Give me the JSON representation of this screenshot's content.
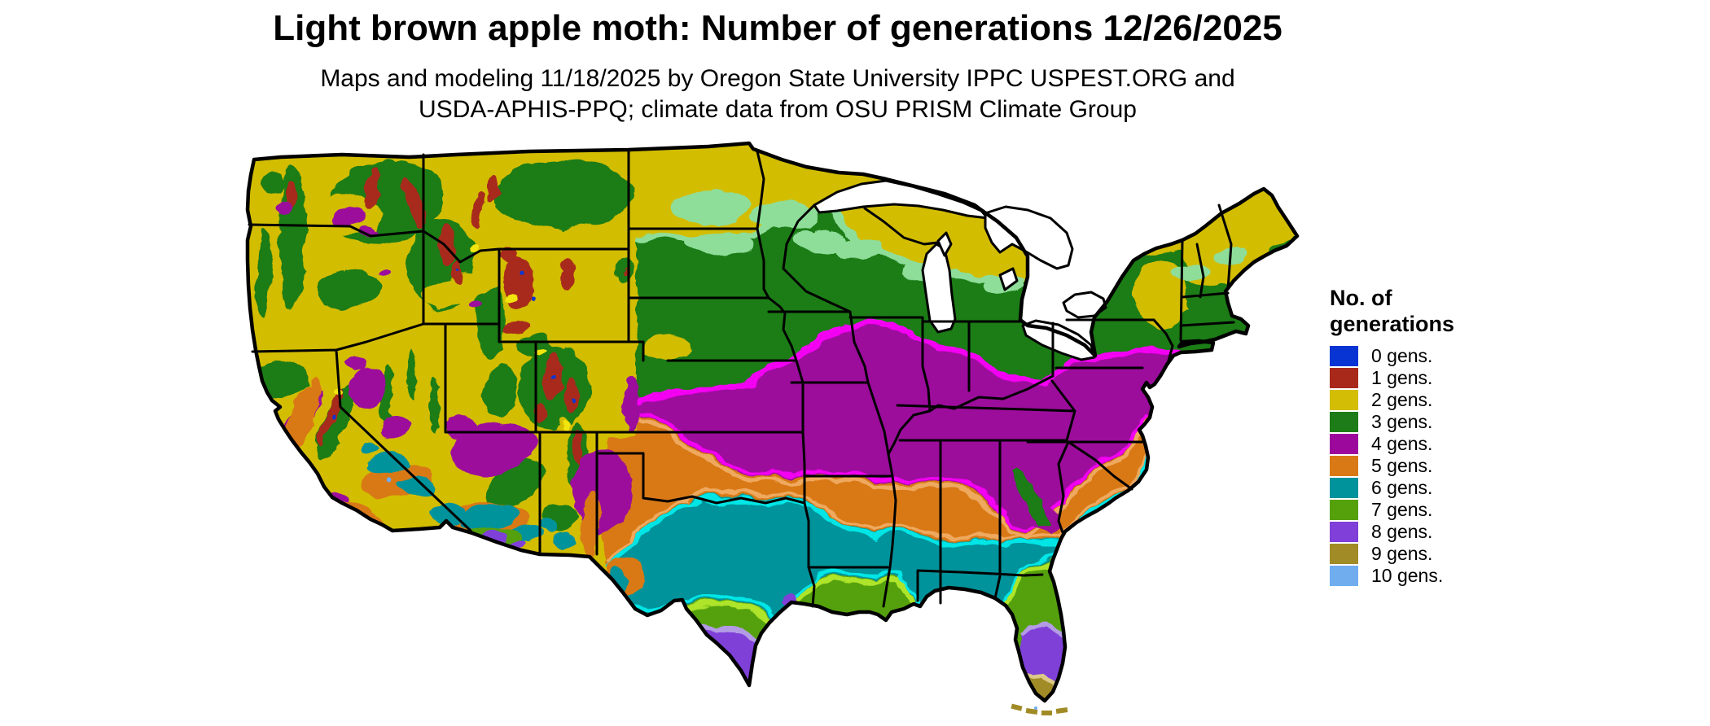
{
  "title": "Light brown apple moth: Number of generations 12/26/2025",
  "subtitle": {
    "line1": "Maps and modeling 11/18/2025 by Oregon State University IPPC USPEST.ORG and",
    "line2": "USDA-APHIS-PPQ; climate data from OSU PRISM Climate Group"
  },
  "legend": {
    "title_line1": "No. of",
    "title_line2": "generations",
    "items": [
      {
        "label": "0 gens.",
        "color": "#0834d4"
      },
      {
        "label": "1 gens.",
        "color": "#a8291a"
      },
      {
        "label": "2 gens.",
        "color": "#d3bd05"
      },
      {
        "label": "3 gens.",
        "color": "#1d7c17"
      },
      {
        "label": "4 gens.",
        "color": "#9c089c"
      },
      {
        "label": "5 gens.",
        "color": "#d97916"
      },
      {
        "label": "6 gens.",
        "color": "#00939b"
      },
      {
        "label": "7 gens.",
        "color": "#55a10c"
      },
      {
        "label": "8 gens.",
        "color": "#7f3fd8"
      },
      {
        "label": "9 gens.",
        "color": "#a08b26"
      },
      {
        "label": "10 gens.",
        "color": "#6fadef"
      }
    ]
  },
  "map": {
    "accent_colors": {
      "bright_magenta": "#f303f3",
      "light_orange": "#efa95e",
      "bright_cyan": "#00e6e6",
      "lime": "#aee52a",
      "light_green": "#8ede9a",
      "lavender": "#b49be6",
      "tan": "#dcc987",
      "bright_yellow": "#f2e50c",
      "border_black": "#000000",
      "water_white": "#ffffff"
    },
    "map_zones": [
      {
        "gens": 0,
        "where": "tiny alpine pixels in Rockies and Sierra"
      },
      {
        "gens": 1,
        "where": "high mountain areas of the interior West"
      },
      {
        "gens": 2,
        "where": "northern tier, Great Basin, northern New England"
      },
      {
        "gens": 3,
        "where": "upper Midwest, Northeast, western mountains"
      },
      {
        "gens": 4,
        "where": "central plains through Ohio Valley and Mid-Atlantic"
      },
      {
        "gens": 5,
        "where": "southern plains, Tennessee valley, Carolinas, CA Central Valley"
      },
      {
        "gens": 6,
        "where": "central Texas, Gulf interior states, SW deserts"
      },
      {
        "gens": 7,
        "where": "south Texas, Gulf coast, north Florida, SW Arizona"
      },
      {
        "gens": 8,
        "where": "lower Rio Grande valley, central-south Florida"
      },
      {
        "gens": 9,
        "where": "southern tip of Florida and the Keys"
      },
      {
        "gens": 10,
        "where": "isolated hottest desert pixels"
      }
    ]
  }
}
